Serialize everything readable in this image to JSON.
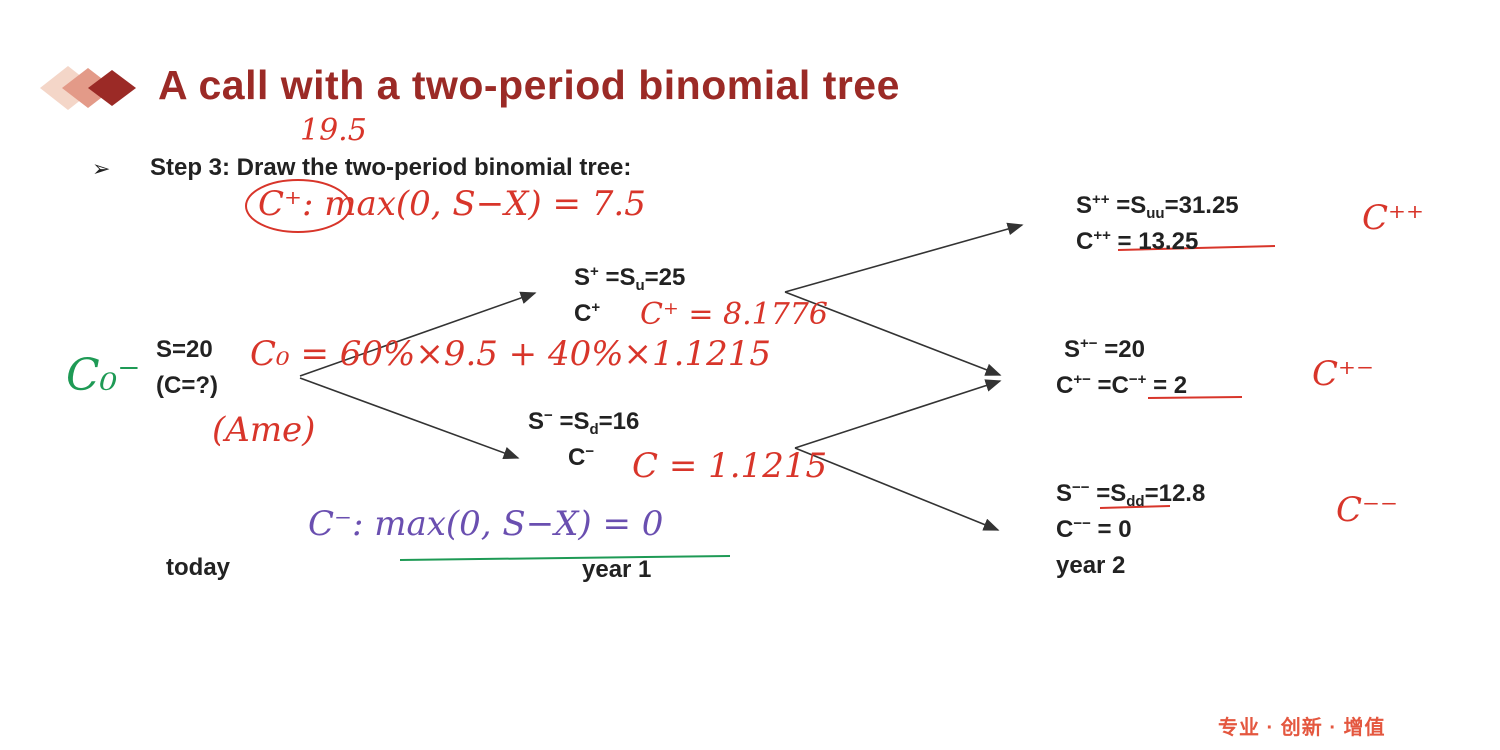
{
  "slide": {
    "title": "A call with a two-period binomial tree",
    "step": "Step 3: Draw the two-period binomial tree:",
    "bullet_icon": "arrowhead-bullet",
    "accent_color": "#9b2a26",
    "footer": "专业 · 创新 · 增值"
  },
  "tree": {
    "today": {
      "s": "S=20",
      "c": "(C=?)",
      "label": "today"
    },
    "year1": {
      "up": {
        "s_base": "S",
        "s_sup": "+",
        "s_eq": " =S",
        "s_sub": "u",
        "s_val": "=25",
        "c_base": "C",
        "c_sup": "+"
      },
      "down": {
        "s_base": "S",
        "s_sup": "−",
        "s_eq": " =S",
        "s_sub": "d",
        "s_val": "=16",
        "c_base": "C",
        "c_sup": "−"
      },
      "label": "year 1"
    },
    "year2": {
      "uu": {
        "s_base": "S",
        "s_sup": "++",
        "s_eq": " =S",
        "s_sub": "uu",
        "s_val": "=31.25",
        "c_base": "C",
        "c_sup": "++",
        "c_val": " = 13.25"
      },
      "ud": {
        "s_base": "S",
        "s_sup": "+−",
        "s_val": " =20",
        "c_base": "C",
        "c_sup": "+−",
        "c_eq": " =C",
        "c_sup2": "−+",
        "c_val": " = 2"
      },
      "dd": {
        "s_base": "S",
        "s_sup": "−−",
        "s_eq": " =S",
        "s_sub": "dd",
        "s_val": "=12.8",
        "c_base": "C",
        "c_sup": "−−",
        "c_val": " = 0"
      },
      "label": "year 2"
    }
  },
  "annotations": {
    "top": "19.5",
    "c_plus_formula": "C⁺: max(0, S−X) = 7.5",
    "c0_formula": "C₀ = 60%×9.5 + 40%×1.1215",
    "c_plus_value": "C⁺ = 8.1776",
    "c0_green": "C₀⁻",
    "ame": "(Ame)",
    "c_minus_value": "C = 1.1215",
    "c_minus_formula": "C⁻: max(0, S−X) = 0",
    "cpp": "C⁺⁺",
    "cpm": "C⁺⁻",
    "cmm": "C⁻⁻"
  }
}
